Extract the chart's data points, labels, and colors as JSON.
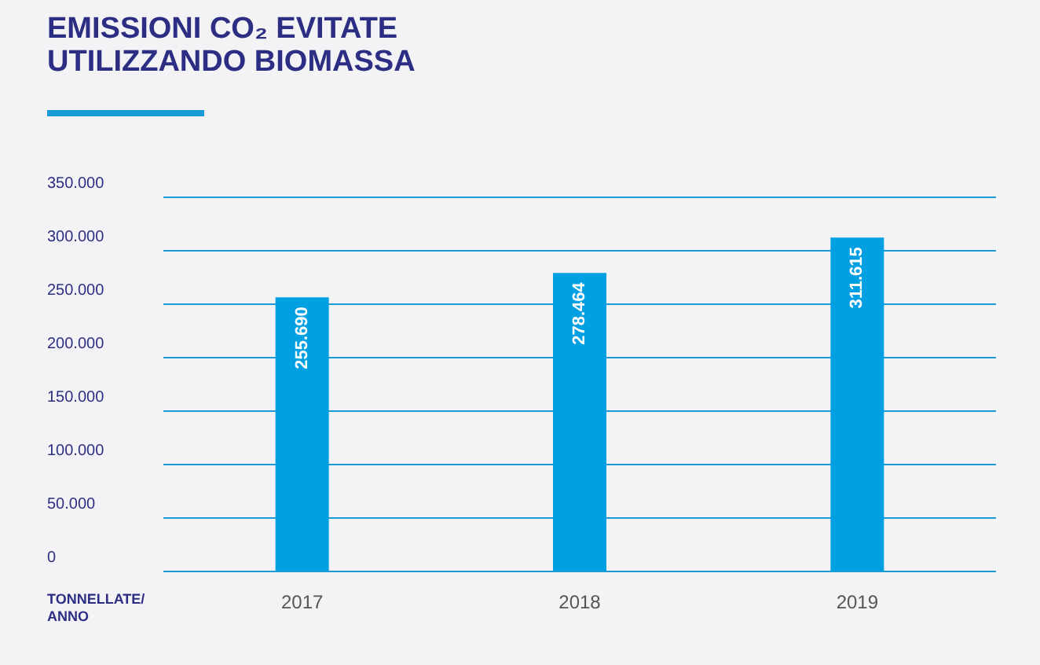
{
  "chart_data": {
    "type": "bar",
    "title": "EMISSIONI CO₂ EVITATE UTILIZZANDO BIOMASSA",
    "ylabel": "TONNELLATE/ ANNO",
    "categories": [
      "2017",
      "2018",
      "2019"
    ],
    "values": [
      255690,
      278464,
      311615
    ],
    "value_labels": [
      "255.690",
      "278.464",
      "311.615"
    ],
    "color": "#00a0e3",
    "ylim": [
      0,
      350000
    ],
    "yticks": [
      {
        "value": 0,
        "label": "0"
      },
      {
        "value": 50000,
        "label": "50.000"
      },
      {
        "value": 100000,
        "label": "100.000"
      },
      {
        "value": 150000,
        "label": "150.000"
      },
      {
        "value": 200000,
        "label": "200.000"
      },
      {
        "value": 250000,
        "label": "250.000"
      },
      {
        "value": 300000,
        "label": "300.000"
      },
      {
        "value": 350000,
        "label": "350.000"
      }
    ],
    "grid": true
  }
}
